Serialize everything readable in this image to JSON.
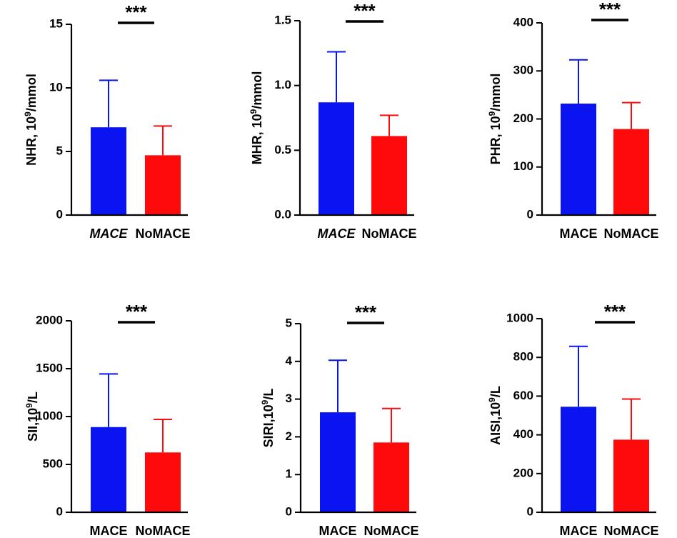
{
  "chart_data": [
    {
      "type": "bar",
      "ylabel": "NHR, 10",
      "ylabel_sup": "9",
      "ylabel_tail": "/mmol",
      "ylim": [
        0,
        15
      ],
      "yticks": [
        0,
        5,
        10,
        15
      ],
      "categories": [
        "MACE",
        "NoMACE"
      ],
      "category_italic": [
        true,
        false
      ],
      "values": [
        6.9,
        4.7
      ],
      "errors": [
        3.7,
        2.3
      ],
      "colors": [
        "#0a14f0",
        "#ff0a0a"
      ],
      "significance": "***"
    },
    {
      "type": "bar",
      "ylabel": "MHR, 10",
      "ylabel_sup": "9",
      "ylabel_tail": "/mmol",
      "ylim": [
        0,
        1.5
      ],
      "yticks": [
        0.0,
        0.5,
        1.0,
        1.5
      ],
      "ytick_labels": [
        "0.0",
        "0.5",
        "1.0",
        "1.5"
      ],
      "categories": [
        "MACE",
        "NoMACE"
      ],
      "category_italic": [
        true,
        false
      ],
      "values": [
        0.87,
        0.61
      ],
      "errors": [
        0.39,
        0.16
      ],
      "colors": [
        "#0a14f0",
        "#ff0a0a"
      ],
      "significance": "***"
    },
    {
      "type": "bar",
      "ylabel": "PHR, 10",
      "ylabel_sup": "9",
      "ylabel_tail": "/mmol",
      "ylim": [
        0,
        400
      ],
      "yticks": [
        0,
        100,
        200,
        300,
        400
      ],
      "categories": [
        "MACE",
        "NoMACE"
      ],
      "category_italic": [
        false,
        false
      ],
      "values": [
        232,
        179
      ],
      "errors": [
        91,
        55
      ],
      "colors": [
        "#0a14f0",
        "#ff0a0a"
      ],
      "significance": "***"
    },
    {
      "type": "bar",
      "ylabel": "SII,10",
      "ylabel_sup": "9",
      "ylabel_tail": "/L",
      "ylim": [
        0,
        2000
      ],
      "yticks": [
        0,
        500,
        1000,
        1500,
        2000
      ],
      "categories": [
        "MACE",
        "NoMACE"
      ],
      "category_italic": [
        false,
        false
      ],
      "values": [
        890,
        625
      ],
      "errors": [
        555,
        345
      ],
      "colors": [
        "#0a14f0",
        "#ff0a0a"
      ],
      "significance": "***"
    },
    {
      "type": "bar",
      "ylabel": "SIRI,10",
      "ylabel_sup": "9",
      "ylabel_tail": "/L",
      "ylim": [
        0,
        5
      ],
      "yticks": [
        0,
        1,
        2,
        3,
        4,
        5
      ],
      "categories": [
        "MACE",
        "NoMACE"
      ],
      "category_italic": [
        false,
        false
      ],
      "values": [
        2.65,
        1.85
      ],
      "errors": [
        1.38,
        0.9
      ],
      "colors": [
        "#0a14f0",
        "#ff0a0a"
      ],
      "significance": "***"
    },
    {
      "type": "bar",
      "ylabel": "AISI,10",
      "ylabel_sup": "9",
      "ylabel_tail": "/L",
      "ylim": [
        0,
        1000
      ],
      "yticks": [
        0,
        200,
        400,
        600,
        800,
        1000
      ],
      "categories": [
        "MACE",
        "NoMACE"
      ],
      "category_italic": [
        false,
        false
      ],
      "values": [
        545,
        375
      ],
      "errors": [
        312,
        210
      ],
      "colors": [
        "#0a14f0",
        "#ff0a0a"
      ],
      "significance": "***"
    }
  ]
}
